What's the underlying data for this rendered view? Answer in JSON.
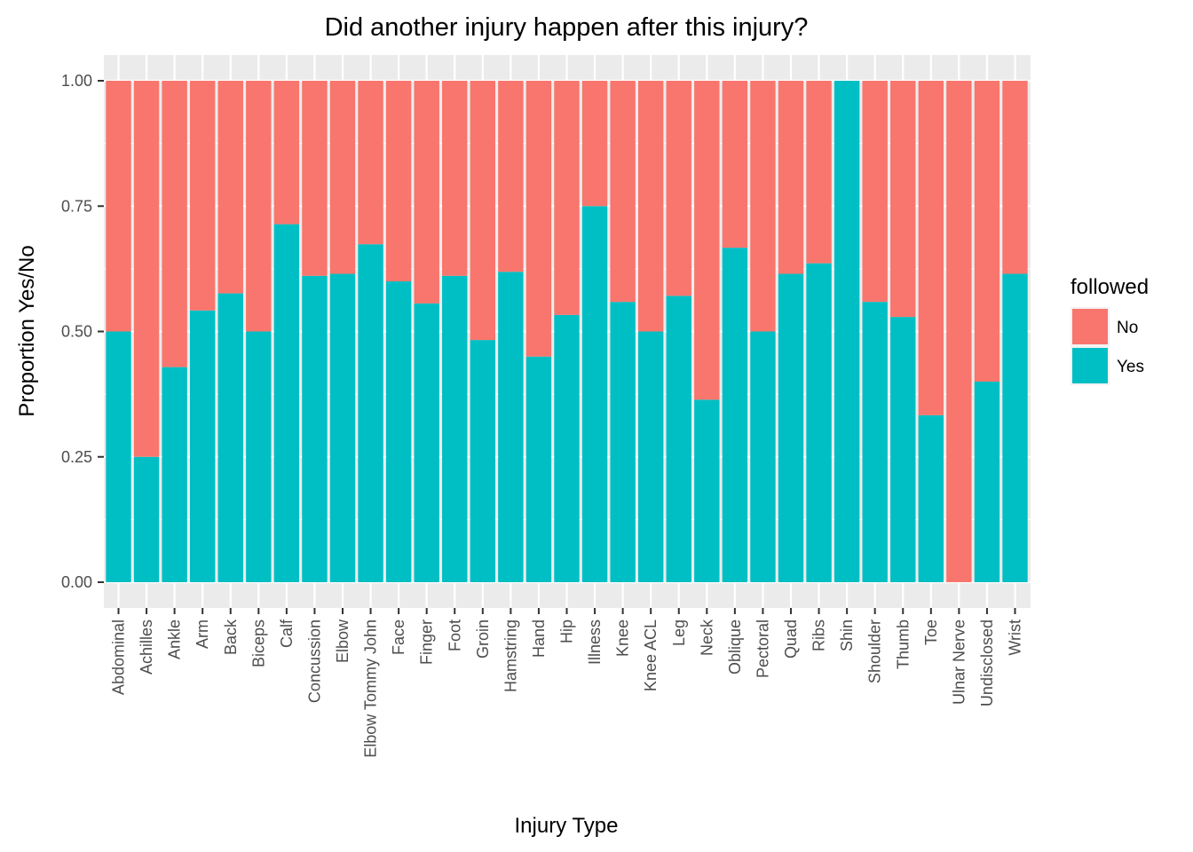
{
  "chart_data": {
    "type": "bar",
    "stacked": true,
    "title": "Did another injury happen after this injury?",
    "xlabel": "Injury Type",
    "ylabel": "Proportion Yes/No",
    "ylim": [
      0,
      1
    ],
    "y_ticks": [
      "0.00",
      "0.25",
      "0.50",
      "0.75",
      "1.00"
    ],
    "y_tick_values": [
      0,
      0.25,
      0.5,
      0.75,
      1.0
    ],
    "grid": true,
    "legend": {
      "title": "followed",
      "position": "right"
    },
    "categories": [
      "Abdominal",
      "Achilles",
      "Ankle",
      "Arm",
      "Back",
      "Biceps",
      "Calf",
      "Concussion",
      "Elbow",
      "Elbow Tommy John",
      "Face",
      "Finger",
      "Foot",
      "Groin",
      "Hamstring",
      "Hand",
      "Hip",
      "Illness",
      "Knee",
      "Knee ACL",
      "Leg",
      "Neck",
      "Oblique",
      "Pectoral",
      "Quad",
      "Ribs",
      "Shin",
      "Shoulder",
      "Thumb",
      "Toe",
      "Ulnar Nerve",
      "Undisclosed",
      "Wrist"
    ],
    "series": [
      {
        "name": "No",
        "color": "#F8766D",
        "values": [
          0.5,
          0.75,
          0.571,
          0.458,
          0.424,
          0.5,
          0.286,
          0.389,
          0.385,
          0.326,
          0.4,
          0.444,
          0.389,
          0.517,
          0.381,
          0.55,
          0.467,
          0.25,
          0.441,
          0.5,
          0.429,
          0.636,
          0.333,
          0.5,
          0.385,
          0.364,
          0.0,
          0.441,
          0.471,
          0.667,
          1.0,
          0.6,
          0.385
        ]
      },
      {
        "name": "Yes",
        "color": "#00BFC4",
        "values": [
          0.5,
          0.25,
          0.429,
          0.542,
          0.576,
          0.5,
          0.714,
          0.611,
          0.615,
          0.674,
          0.6,
          0.556,
          0.611,
          0.483,
          0.619,
          0.45,
          0.533,
          0.75,
          0.559,
          0.5,
          0.571,
          0.364,
          0.667,
          0.5,
          0.615,
          0.636,
          1.0,
          0.559,
          0.529,
          0.333,
          0.0,
          0.4,
          0.615
        ]
      }
    ]
  }
}
